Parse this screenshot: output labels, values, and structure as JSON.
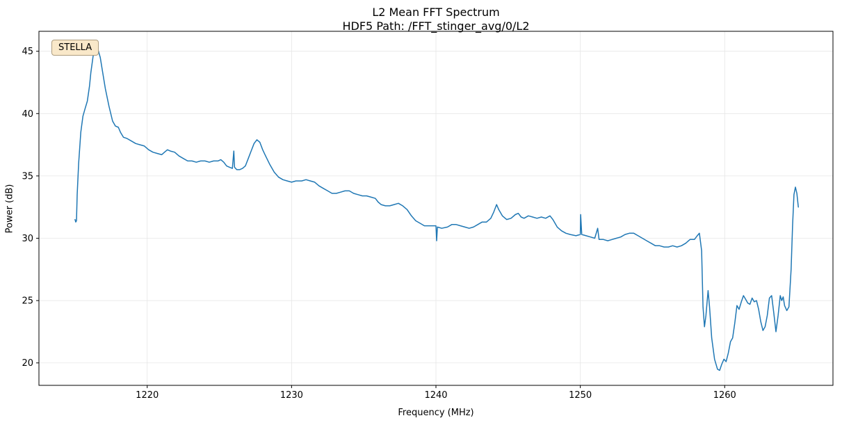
{
  "figure": {
    "title_line1": "L2 Mean FFT Spectrum",
    "title_line2": "HDF5 Path: /FFT_stinger_avg/0/L2",
    "xlabel": "Frequency (MHz)",
    "ylabel": "Power (dB)",
    "legend": {
      "label": "STELLA",
      "facecolor": "#f9e8c9",
      "edgecolor": "#ad9c7e",
      "position": "upper left"
    }
  },
  "chart_data": {
    "type": "line",
    "title": "L2 Mean FFT Spectrum",
    "subtitle": "HDF5 Path: /FFT_stinger_avg/0/L2",
    "xlabel": "Frequency (MHz)",
    "ylabel": "Power (dB)",
    "xlim": [
      1212.5,
      1267.5
    ],
    "ylim": [
      18.2,
      46.6
    ],
    "xticks": [
      1220,
      1230,
      1240,
      1250,
      1260
    ],
    "yticks": [
      20,
      25,
      30,
      35,
      40,
      45
    ],
    "grid": true,
    "grid_color": "#e6e6e6",
    "legend_position": "upper left",
    "series": [
      {
        "name": "STELLA",
        "color": "#1f77b4",
        "linewidth": 1.5,
        "points": [
          [
            1215.0,
            31.5
          ],
          [
            1215.05,
            31.3
          ],
          [
            1215.1,
            31.4
          ],
          [
            1215.15,
            33.5
          ],
          [
            1215.25,
            36.0
          ],
          [
            1215.4,
            38.5
          ],
          [
            1215.55,
            39.8
          ],
          [
            1215.7,
            40.4
          ],
          [
            1215.85,
            41.0
          ],
          [
            1216.0,
            42.2
          ],
          [
            1216.1,
            43.3
          ],
          [
            1216.25,
            44.6
          ],
          [
            1216.4,
            45.2
          ],
          [
            1216.5,
            44.8
          ],
          [
            1216.6,
            45.1
          ],
          [
            1216.75,
            44.5
          ],
          [
            1216.9,
            43.4
          ],
          [
            1217.1,
            42.0
          ],
          [
            1217.35,
            40.6
          ],
          [
            1217.6,
            39.4
          ],
          [
            1217.8,
            39.0
          ],
          [
            1218.0,
            38.9
          ],
          [
            1218.15,
            38.5
          ],
          [
            1218.35,
            38.1
          ],
          [
            1218.6,
            38.0
          ],
          [
            1218.9,
            37.8
          ],
          [
            1219.2,
            37.6
          ],
          [
            1219.5,
            37.5
          ],
          [
            1219.8,
            37.4
          ],
          [
            1220.1,
            37.1
          ],
          [
            1220.4,
            36.9
          ],
          [
            1220.7,
            36.8
          ],
          [
            1221.0,
            36.7
          ],
          [
            1221.2,
            36.9
          ],
          [
            1221.4,
            37.1
          ],
          [
            1221.6,
            37.0
          ],
          [
            1221.9,
            36.9
          ],
          [
            1222.2,
            36.6
          ],
          [
            1222.5,
            36.4
          ],
          [
            1222.8,
            36.2
          ],
          [
            1223.1,
            36.2
          ],
          [
            1223.4,
            36.1
          ],
          [
            1223.7,
            36.2
          ],
          [
            1224.0,
            36.2
          ],
          [
            1224.3,
            36.1
          ],
          [
            1224.6,
            36.2
          ],
          [
            1224.9,
            36.2
          ],
          [
            1225.1,
            36.3
          ],
          [
            1225.3,
            36.1
          ],
          [
            1225.5,
            35.8
          ],
          [
            1225.7,
            35.7
          ],
          [
            1225.9,
            35.6
          ],
          [
            1226.0,
            37.0
          ],
          [
            1226.05,
            35.7
          ],
          [
            1226.2,
            35.5
          ],
          [
            1226.4,
            35.5
          ],
          [
            1226.6,
            35.6
          ],
          [
            1226.8,
            35.8
          ],
          [
            1227.0,
            36.4
          ],
          [
            1227.2,
            37.0
          ],
          [
            1227.4,
            37.6
          ],
          [
            1227.6,
            37.9
          ],
          [
            1227.8,
            37.7
          ],
          [
            1228.0,
            37.1
          ],
          [
            1228.2,
            36.6
          ],
          [
            1228.5,
            35.9
          ],
          [
            1228.8,
            35.3
          ],
          [
            1229.1,
            34.9
          ],
          [
            1229.4,
            34.7
          ],
          [
            1229.7,
            34.6
          ],
          [
            1230.0,
            34.5
          ],
          [
            1230.3,
            34.6
          ],
          [
            1230.7,
            34.6
          ],
          [
            1231.0,
            34.7
          ],
          [
            1231.3,
            34.6
          ],
          [
            1231.6,
            34.5
          ],
          [
            1231.9,
            34.2
          ],
          [
            1232.2,
            34.0
          ],
          [
            1232.5,
            33.8
          ],
          [
            1232.8,
            33.6
          ],
          [
            1233.1,
            33.6
          ],
          [
            1233.4,
            33.7
          ],
          [
            1233.7,
            33.8
          ],
          [
            1234.0,
            33.8
          ],
          [
            1234.3,
            33.6
          ],
          [
            1234.6,
            33.5
          ],
          [
            1234.9,
            33.4
          ],
          [
            1235.2,
            33.4
          ],
          [
            1235.5,
            33.3
          ],
          [
            1235.8,
            33.2
          ],
          [
            1236.0,
            32.9
          ],
          [
            1236.2,
            32.7
          ],
          [
            1236.5,
            32.6
          ],
          [
            1236.8,
            32.6
          ],
          [
            1237.1,
            32.7
          ],
          [
            1237.4,
            32.8
          ],
          [
            1237.7,
            32.6
          ],
          [
            1238.0,
            32.3
          ],
          [
            1238.3,
            31.8
          ],
          [
            1238.6,
            31.4
          ],
          [
            1238.9,
            31.2
          ],
          [
            1239.2,
            31.0
          ],
          [
            1239.6,
            31.0
          ],
          [
            1240.0,
            31.0
          ],
          [
            1240.05,
            29.8
          ],
          [
            1240.1,
            30.9
          ],
          [
            1240.4,
            30.8
          ],
          [
            1240.8,
            30.9
          ],
          [
            1241.1,
            31.1
          ],
          [
            1241.4,
            31.1
          ],
          [
            1241.7,
            31.0
          ],
          [
            1242.0,
            30.9
          ],
          [
            1242.3,
            30.8
          ],
          [
            1242.6,
            30.9
          ],
          [
            1242.9,
            31.1
          ],
          [
            1243.2,
            31.3
          ],
          [
            1243.5,
            31.3
          ],
          [
            1243.8,
            31.6
          ],
          [
            1244.0,
            32.1
          ],
          [
            1244.2,
            32.7
          ],
          [
            1244.35,
            32.3
          ],
          [
            1244.6,
            31.8
          ],
          [
            1244.9,
            31.5
          ],
          [
            1245.2,
            31.6
          ],
          [
            1245.5,
            31.9
          ],
          [
            1245.7,
            32.0
          ],
          [
            1245.9,
            31.7
          ],
          [
            1246.1,
            31.6
          ],
          [
            1246.4,
            31.8
          ],
          [
            1246.7,
            31.7
          ],
          [
            1247.0,
            31.6
          ],
          [
            1247.3,
            31.7
          ],
          [
            1247.6,
            31.6
          ],
          [
            1247.9,
            31.8
          ],
          [
            1248.1,
            31.5
          ],
          [
            1248.4,
            30.9
          ],
          [
            1248.7,
            30.6
          ],
          [
            1249.0,
            30.4
          ],
          [
            1249.3,
            30.3
          ],
          [
            1249.7,
            30.2
          ],
          [
            1250.0,
            30.3
          ],
          [
            1250.02,
            31.9
          ],
          [
            1250.1,
            30.3
          ],
          [
            1250.4,
            30.2
          ],
          [
            1250.7,
            30.1
          ],
          [
            1251.0,
            30.0
          ],
          [
            1251.2,
            30.8
          ],
          [
            1251.3,
            29.9
          ],
          [
            1251.6,
            29.9
          ],
          [
            1251.9,
            29.8
          ],
          [
            1252.2,
            29.9
          ],
          [
            1252.5,
            30.0
          ],
          [
            1252.8,
            30.1
          ],
          [
            1253.1,
            30.3
          ],
          [
            1253.4,
            30.4
          ],
          [
            1253.7,
            30.4
          ],
          [
            1254.0,
            30.2
          ],
          [
            1254.3,
            30.0
          ],
          [
            1254.6,
            29.8
          ],
          [
            1254.9,
            29.6
          ],
          [
            1255.2,
            29.4
          ],
          [
            1255.5,
            29.4
          ],
          [
            1255.8,
            29.3
          ],
          [
            1256.1,
            29.3
          ],
          [
            1256.4,
            29.4
          ],
          [
            1256.7,
            29.3
          ],
          [
            1257.0,
            29.4
          ],
          [
            1257.3,
            29.6
          ],
          [
            1257.6,
            29.9
          ],
          [
            1257.9,
            29.9
          ],
          [
            1258.1,
            30.2
          ],
          [
            1258.25,
            30.4
          ],
          [
            1258.4,
            29.0
          ],
          [
            1258.5,
            24.5
          ],
          [
            1258.6,
            22.9
          ],
          [
            1258.7,
            23.8
          ],
          [
            1258.85,
            25.8
          ],
          [
            1258.95,
            24.5
          ],
          [
            1259.1,
            22.0
          ],
          [
            1259.3,
            20.3
          ],
          [
            1259.5,
            19.5
          ],
          [
            1259.65,
            19.4
          ],
          [
            1259.8,
            19.9
          ],
          [
            1259.95,
            20.3
          ],
          [
            1260.1,
            20.1
          ],
          [
            1260.25,
            20.8
          ],
          [
            1260.4,
            21.7
          ],
          [
            1260.55,
            22.0
          ],
          [
            1260.7,
            23.2
          ],
          [
            1260.85,
            24.6
          ],
          [
            1261.0,
            24.3
          ],
          [
            1261.15,
            24.9
          ],
          [
            1261.3,
            25.4
          ],
          [
            1261.45,
            25.1
          ],
          [
            1261.6,
            24.8
          ],
          [
            1261.75,
            24.7
          ],
          [
            1261.9,
            25.2
          ],
          [
            1262.05,
            24.9
          ],
          [
            1262.2,
            25.0
          ],
          [
            1262.35,
            24.3
          ],
          [
            1262.5,
            23.3
          ],
          [
            1262.65,
            22.6
          ],
          [
            1262.8,
            22.9
          ],
          [
            1262.95,
            23.8
          ],
          [
            1263.1,
            25.2
          ],
          [
            1263.25,
            25.4
          ],
          [
            1263.4,
            24.0
          ],
          [
            1263.55,
            22.5
          ],
          [
            1263.7,
            23.8
          ],
          [
            1263.85,
            25.4
          ],
          [
            1263.95,
            25.0
          ],
          [
            1264.05,
            25.3
          ],
          [
            1264.15,
            24.6
          ],
          [
            1264.3,
            24.2
          ],
          [
            1264.45,
            24.5
          ],
          [
            1264.6,
            27.5
          ],
          [
            1264.7,
            31.0
          ],
          [
            1264.8,
            33.5
          ],
          [
            1264.9,
            34.1
          ],
          [
            1265.0,
            33.6
          ],
          [
            1265.1,
            32.5
          ]
        ]
      }
    ]
  }
}
